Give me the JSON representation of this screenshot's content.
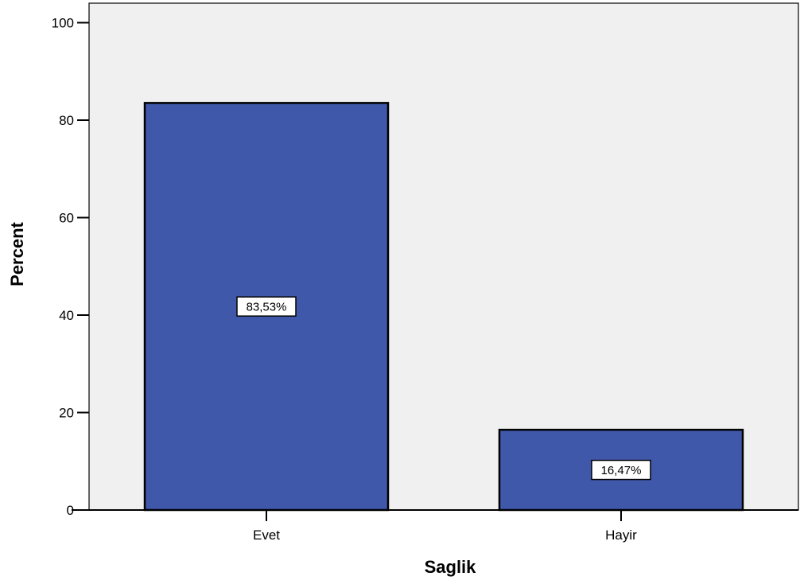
{
  "chart_data": {
    "type": "bar",
    "categories": [
      "Evet",
      "Hayir"
    ],
    "values": [
      83.53,
      16.47
    ],
    "data_labels": [
      "83,53%",
      "16,47%"
    ],
    "xlabel": "Saglik",
    "ylabel": "Percent",
    "ylim": [
      0,
      104
    ],
    "yticks": [
      0,
      20,
      40,
      60,
      80,
      100
    ],
    "ytick_labels": [
      "0",
      "20",
      "40",
      "60",
      "80",
      "100"
    ],
    "grid": false,
    "legend": "none",
    "colors": {
      "bar_fill": "#3f58aa",
      "bar_stroke": "#000000",
      "plot_background": "#f0f0f0",
      "label_box": "#ffffff"
    }
  }
}
